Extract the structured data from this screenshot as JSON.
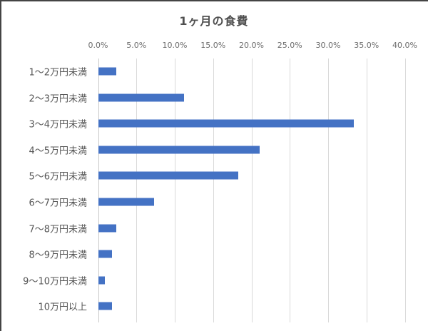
{
  "chart_data": {
    "type": "bar",
    "orientation": "horizontal",
    "title": "1ヶ月の食費",
    "xlabel": "",
    "ylabel": "",
    "xlim": [
      0,
      40
    ],
    "x_ticks": [
      "0.0%",
      "5.0%",
      "10.0%",
      "15.0%",
      "20.0%",
      "25.0%",
      "30.0%",
      "35.0%",
      "40.0%"
    ],
    "grid": true,
    "legend": null,
    "categories": [
      "1〜2万円未満",
      "2〜3万円未満",
      "3〜4万円未満",
      "4〜5万円未満",
      "5〜6万円未満",
      "6〜7万円未満",
      "7〜8万円未満",
      "8〜9万円未満",
      "9〜10万円未満",
      "10万円以上"
    ],
    "values": [
      2.3,
      11.2,
      33.3,
      21.0,
      18.2,
      7.3,
      2.3,
      1.8,
      0.8,
      1.8
    ],
    "unit": "%",
    "bar_color": "#4472c4"
  }
}
